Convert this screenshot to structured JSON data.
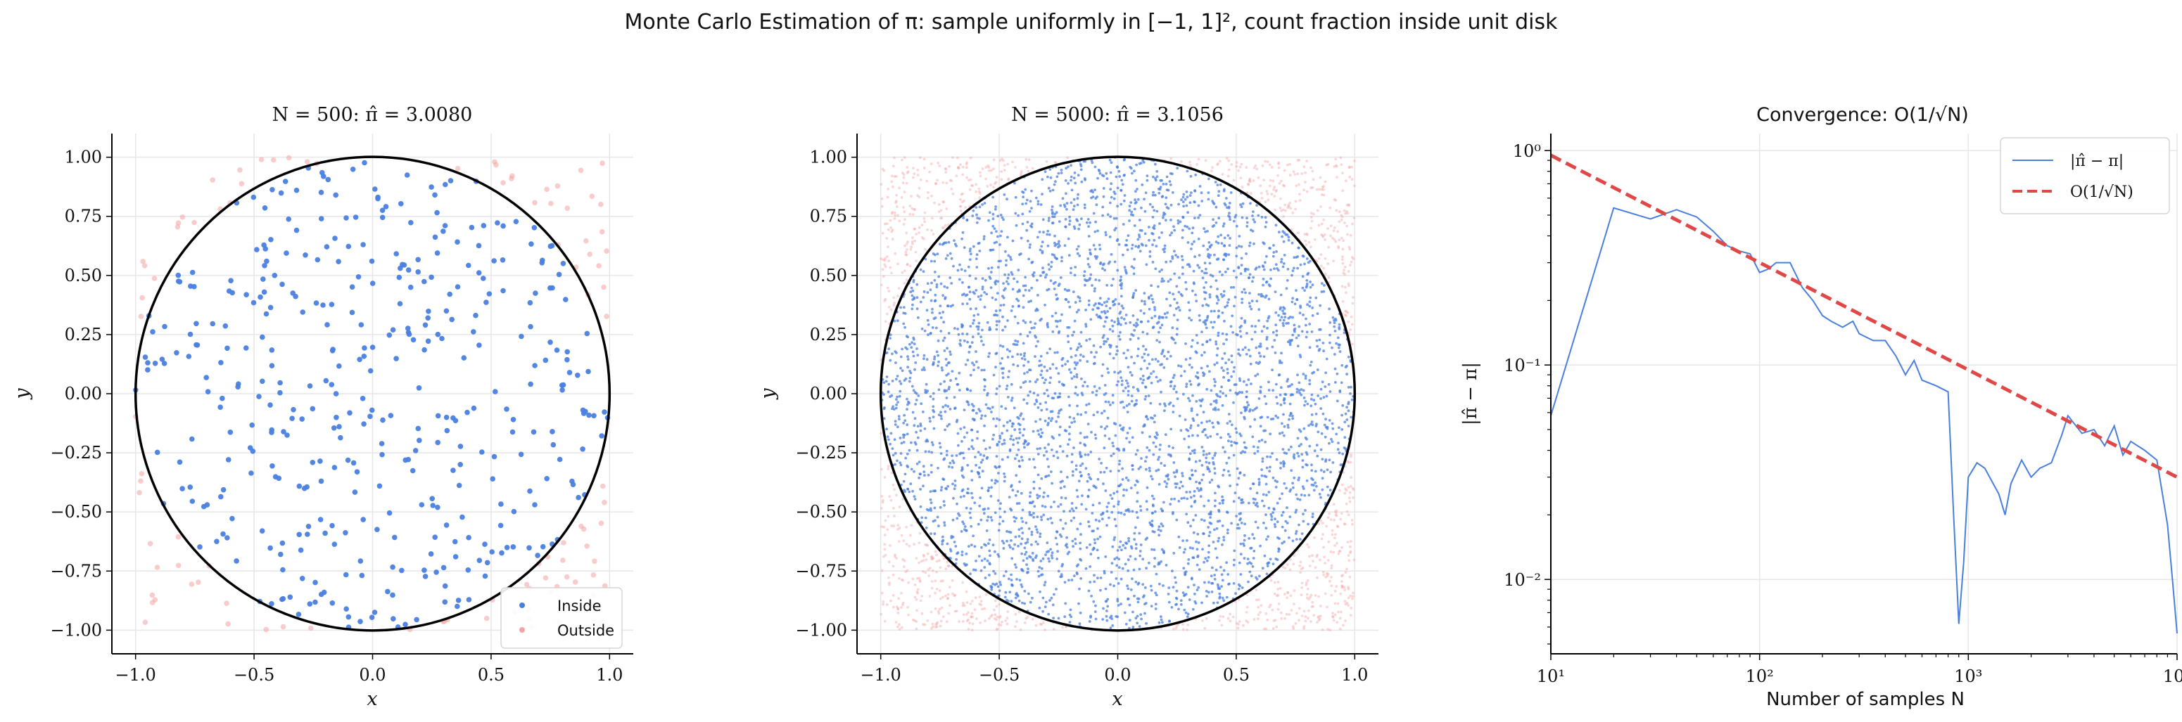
{
  "suptitle": "Monte Carlo Estimation of π: sample uniformly in [−1, 1]², count fraction inside unit disk",
  "colors": {
    "inside": "#4a7fe0",
    "outside": "#f4a3a3",
    "reference": "#e04848",
    "circle": "#000000"
  },
  "chart_data": [
    {
      "type": "scatter",
      "title": "N = 500: π̂ = 3.0080",
      "xlabel": "x",
      "ylabel": "y",
      "xlim": [
        -1.1,
        1.1
      ],
      "ylim": [
        -1.1,
        1.1
      ],
      "xticks": [
        "−1.0",
        "−0.5",
        "0.0",
        "0.5",
        "1.0"
      ],
      "yticks": [
        "1.00",
        "0.75",
        "0.50",
        "0.25",
        "0.00",
        "−0.25",
        "−0.50",
        "−0.75",
        "−1.00"
      ],
      "n_points": 500,
      "pi_hat": 3.008,
      "circle": {
        "center": [
          0,
          0
        ],
        "radius": 1
      },
      "grid": true,
      "legend": {
        "placement": "lower-right",
        "entries": [
          "Inside",
          "Outside"
        ]
      }
    },
    {
      "type": "scatter",
      "title": "N = 5000: π̂ = 3.1056",
      "xlabel": "x",
      "ylabel": "y",
      "xlim": [
        -1.1,
        1.1
      ],
      "ylim": [
        -1.1,
        1.1
      ],
      "xticks": [
        "−1.0",
        "−0.5",
        "0.0",
        "0.5",
        "1.0"
      ],
      "yticks": [
        "1.00",
        "0.75",
        "0.50",
        "0.25",
        "0.00",
        "−0.25",
        "−0.50",
        "−0.75",
        "−1.00"
      ],
      "n_points": 5000,
      "pi_hat": 3.1056,
      "circle": {
        "center": [
          0,
          0
        ],
        "radius": 1
      },
      "grid": true
    },
    {
      "type": "line",
      "title": "Convergence: O(1/√N)",
      "xlabel": "Number of samples N",
      "ylabel": "|π̂ − π|",
      "xscale": "log",
      "yscale": "log",
      "xlim": [
        10,
        10000
      ],
      "ylim": [
        0.0045,
        1.2
      ],
      "xticks": [
        "10¹",
        "10²",
        "10³",
        "10⁴"
      ],
      "yticks": [
        "10⁰",
        "10⁻¹",
        "10⁻²"
      ],
      "grid": true,
      "legend": {
        "placement": "top-right",
        "entries": [
          "|π̂ − π|",
          "O(1/√N)"
        ]
      },
      "series": [
        {
          "name": "|π̂ − π|",
          "x": [
            10,
            20,
            30,
            40,
            50,
            60,
            70,
            80,
            90,
            100,
            110,
            120,
            140,
            160,
            180,
            200,
            220,
            250,
            280,
            300,
            350,
            400,
            450,
            500,
            550,
            600,
            700,
            800,
            850,
            900,
            950,
            1000,
            1100,
            1200,
            1400,
            1500,
            1600,
            1800,
            2000,
            2200,
            2500,
            2800,
            3000,
            3500,
            4000,
            4500,
            5000,
            5500,
            6000,
            7000,
            8000,
            9000,
            9500,
            10000
          ],
          "y": [
            0.058,
            0.54,
            0.48,
            0.53,
            0.49,
            0.42,
            0.36,
            0.34,
            0.33,
            0.27,
            0.28,
            0.3,
            0.3,
            0.23,
            0.2,
            0.17,
            0.16,
            0.15,
            0.16,
            0.14,
            0.13,
            0.13,
            0.11,
            0.09,
            0.105,
            0.085,
            0.08,
            0.075,
            0.02,
            0.0062,
            0.012,
            0.03,
            0.035,
            0.033,
            0.025,
            0.02,
            0.028,
            0.036,
            0.03,
            0.033,
            0.035,
            0.047,
            0.058,
            0.048,
            0.05,
            0.042,
            0.052,
            0.038,
            0.044,
            0.04,
            0.036,
            0.018,
            0.01,
            0.0056
          ]
        },
        {
          "name": "O(1/√N)",
          "style": "dashed",
          "x": [
            10,
            10000
          ],
          "y": [
            0.95,
            0.03
          ]
        }
      ]
    }
  ]
}
